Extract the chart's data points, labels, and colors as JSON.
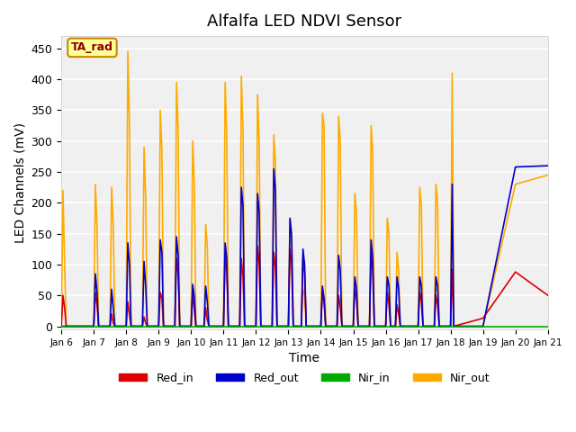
{
  "title": "Alfalfa LED NDVI Sensor",
  "xlabel": "Time",
  "ylabel": "LED Channels (mV)",
  "ylim": [
    -5,
    470
  ],
  "xlim": [
    0,
    15
  ],
  "background_color": "#f0f0f0",
  "grid_color": "#ffffff",
  "annotation_text": "TA_rad",
  "annotation_bg": "#ffff99",
  "annotation_border": "#cc8800",
  "legend_labels": [
    "Red_in",
    "Red_out",
    "Nir_in",
    "Nir_out"
  ],
  "legend_colors": [
    "#dd0000",
    "#0000cc",
    "#00aa00",
    "#ffaa00"
  ],
  "x_tick_labels": [
    "Jan 6",
    "Jan 7",
    "Jan 8",
    "Jan 9",
    "Jan 10",
    "Jan 11",
    "Jan 12",
    "Jan 13",
    "Jan 14",
    "Jan 15",
    "Jan 16",
    "Jan 17",
    "Jan 18",
    "Jan 19",
    "Jan 20",
    "Jan 21"
  ],
  "x_tick_positions": [
    0,
    1,
    2,
    3,
    4,
    5,
    6,
    7,
    8,
    9,
    10,
    11,
    12,
    13,
    14,
    15
  ],
  "red_in": [
    [
      0.0,
      0
    ],
    [
      0.05,
      50
    ],
    [
      0.1,
      30
    ],
    [
      0.15,
      0
    ],
    [
      1.0,
      0
    ],
    [
      1.05,
      55
    ],
    [
      1.1,
      35
    ],
    [
      1.15,
      0
    ],
    [
      1.5,
      0
    ],
    [
      1.55,
      20
    ],
    [
      1.6,
      5
    ],
    [
      1.65,
      0
    ],
    [
      2.0,
      0
    ],
    [
      2.05,
      40
    ],
    [
      2.1,
      18
    ],
    [
      2.15,
      0
    ],
    [
      2.5,
      0
    ],
    [
      2.55,
      15
    ],
    [
      2.6,
      5
    ],
    [
      2.65,
      0
    ],
    [
      3.0,
      0
    ],
    [
      3.05,
      55
    ],
    [
      3.1,
      45
    ],
    [
      3.15,
      0
    ],
    [
      3.5,
      0
    ],
    [
      3.55,
      110
    ],
    [
      3.6,
      85
    ],
    [
      3.65,
      0
    ],
    [
      4.0,
      0
    ],
    [
      4.05,
      55
    ],
    [
      4.1,
      25
    ],
    [
      4.15,
      0
    ],
    [
      4.4,
      0
    ],
    [
      4.45,
      30
    ],
    [
      4.5,
      10
    ],
    [
      4.55,
      0
    ],
    [
      5.0,
      0
    ],
    [
      5.05,
      115
    ],
    [
      5.1,
      90
    ],
    [
      5.15,
      0
    ],
    [
      5.5,
      0
    ],
    [
      5.55,
      110
    ],
    [
      5.6,
      80
    ],
    [
      5.65,
      0
    ],
    [
      6.0,
      0
    ],
    [
      6.05,
      130
    ],
    [
      6.1,
      100
    ],
    [
      6.15,
      0
    ],
    [
      6.5,
      0
    ],
    [
      6.55,
      120
    ],
    [
      6.6,
      95
    ],
    [
      6.65,
      0
    ],
    [
      7.0,
      0
    ],
    [
      7.05,
      125
    ],
    [
      7.1,
      100
    ],
    [
      7.15,
      0
    ],
    [
      7.4,
      0
    ],
    [
      7.45,
      110
    ],
    [
      7.5,
      85
    ],
    [
      7.55,
      0
    ],
    [
      8.0,
      0
    ],
    [
      8.05,
      55
    ],
    [
      8.1,
      40
    ],
    [
      8.15,
      0
    ],
    [
      8.5,
      0
    ],
    [
      8.55,
      50
    ],
    [
      8.6,
      30
    ],
    [
      8.65,
      0
    ],
    [
      9.0,
      0
    ],
    [
      9.05,
      60
    ],
    [
      9.1,
      45
    ],
    [
      9.15,
      0
    ],
    [
      9.5,
      0
    ],
    [
      9.55,
      115
    ],
    [
      9.6,
      90
    ],
    [
      9.65,
      0
    ],
    [
      10.0,
      0
    ],
    [
      10.05,
      55
    ],
    [
      10.1,
      35
    ],
    [
      10.15,
      0
    ],
    [
      10.3,
      0
    ],
    [
      10.35,
      35
    ],
    [
      10.4,
      20
    ],
    [
      10.45,
      0
    ],
    [
      11.0,
      0
    ],
    [
      11.05,
      55
    ],
    [
      11.1,
      40
    ],
    [
      11.15,
      0
    ],
    [
      11.5,
      0
    ],
    [
      11.55,
      50
    ],
    [
      11.6,
      35
    ],
    [
      11.65,
      0
    ],
    [
      12.0,
      0
    ],
    [
      12.05,
      92
    ],
    [
      12.1,
      0
    ],
    [
      13.0,
      13
    ],
    [
      14.0,
      88
    ],
    [
      15.0,
      50
    ]
  ],
  "red_out": [
    [
      0.0,
      0
    ],
    [
      0.05,
      0
    ],
    [
      0.1,
      0
    ],
    [
      0.15,
      0
    ],
    [
      1.0,
      0
    ],
    [
      1.05,
      85
    ],
    [
      1.1,
      55
    ],
    [
      1.15,
      0
    ],
    [
      1.5,
      0
    ],
    [
      1.55,
      60
    ],
    [
      1.6,
      30
    ],
    [
      1.65,
      0
    ],
    [
      2.0,
      0
    ],
    [
      2.05,
      135
    ],
    [
      2.1,
      100
    ],
    [
      2.15,
      0
    ],
    [
      2.5,
      0
    ],
    [
      2.55,
      105
    ],
    [
      2.6,
      65
    ],
    [
      2.65,
      0
    ],
    [
      3.0,
      0
    ],
    [
      3.05,
      140
    ],
    [
      3.1,
      120
    ],
    [
      3.15,
      0
    ],
    [
      3.5,
      0
    ],
    [
      3.55,
      145
    ],
    [
      3.6,
      115
    ],
    [
      3.65,
      0
    ],
    [
      4.0,
      0
    ],
    [
      4.05,
      68
    ],
    [
      4.1,
      48
    ],
    [
      4.15,
      0
    ],
    [
      4.4,
      0
    ],
    [
      4.45,
      65
    ],
    [
      4.5,
      40
    ],
    [
      4.55,
      0
    ],
    [
      5.0,
      0
    ],
    [
      5.05,
      135
    ],
    [
      5.1,
      110
    ],
    [
      5.15,
      0
    ],
    [
      5.5,
      0
    ],
    [
      5.55,
      225
    ],
    [
      5.6,
      195
    ],
    [
      5.65,
      0
    ],
    [
      6.0,
      0
    ],
    [
      6.05,
      215
    ],
    [
      6.1,
      185
    ],
    [
      6.15,
      0
    ],
    [
      6.5,
      0
    ],
    [
      6.55,
      255
    ],
    [
      6.6,
      220
    ],
    [
      6.65,
      0
    ],
    [
      7.0,
      0
    ],
    [
      7.05,
      175
    ],
    [
      7.1,
      145
    ],
    [
      7.15,
      0
    ],
    [
      7.4,
      0
    ],
    [
      7.45,
      125
    ],
    [
      7.5,
      100
    ],
    [
      7.55,
      0
    ],
    [
      8.0,
      0
    ],
    [
      8.05,
      65
    ],
    [
      8.1,
      45
    ],
    [
      8.15,
      0
    ],
    [
      8.5,
      0
    ],
    [
      8.55,
      115
    ],
    [
      8.6,
      90
    ],
    [
      8.65,
      0
    ],
    [
      9.0,
      0
    ],
    [
      9.05,
      80
    ],
    [
      9.1,
      60
    ],
    [
      9.15,
      0
    ],
    [
      9.5,
      0
    ],
    [
      9.55,
      140
    ],
    [
      9.6,
      110
    ],
    [
      9.65,
      0
    ],
    [
      10.0,
      0
    ],
    [
      10.05,
      80
    ],
    [
      10.1,
      65
    ],
    [
      10.15,
      0
    ],
    [
      10.3,
      0
    ],
    [
      10.35,
      80
    ],
    [
      10.4,
      60
    ],
    [
      10.45,
      0
    ],
    [
      11.0,
      0
    ],
    [
      11.05,
      80
    ],
    [
      11.1,
      65
    ],
    [
      11.15,
      0
    ],
    [
      11.5,
      0
    ],
    [
      11.55,
      80
    ],
    [
      11.6,
      65
    ],
    [
      11.65,
      0
    ],
    [
      12.0,
      0
    ],
    [
      12.05,
      230
    ],
    [
      12.1,
      0
    ],
    [
      13.0,
      0
    ],
    [
      14.0,
      258
    ],
    [
      15.0,
      260
    ]
  ],
  "nir_in": [
    [
      0.0,
      0
    ],
    [
      0.1,
      0
    ],
    [
      1.0,
      0
    ],
    [
      2.0,
      0
    ],
    [
      3.0,
      0
    ],
    [
      4.0,
      0
    ],
    [
      5.0,
      0
    ],
    [
      6.0,
      0
    ],
    [
      7.0,
      0
    ],
    [
      8.0,
      0
    ],
    [
      9.0,
      0
    ],
    [
      10.0,
      0
    ],
    [
      11.0,
      0
    ],
    [
      12.0,
      0
    ],
    [
      13.0,
      0
    ],
    [
      14.0,
      0
    ],
    [
      15.0,
      0
    ]
  ],
  "nir_out": [
    [
      0.0,
      0
    ],
    [
      0.05,
      220
    ],
    [
      0.1,
      105
    ],
    [
      0.15,
      0
    ],
    [
      1.0,
      0
    ],
    [
      1.05,
      230
    ],
    [
      1.1,
      160
    ],
    [
      1.15,
      0
    ],
    [
      1.5,
      0
    ],
    [
      1.55,
      225
    ],
    [
      1.6,
      165
    ],
    [
      1.65,
      0
    ],
    [
      2.0,
      0
    ],
    [
      2.05,
      445
    ],
    [
      2.1,
      330
    ],
    [
      2.15,
      0
    ],
    [
      2.5,
      0
    ],
    [
      2.55,
      290
    ],
    [
      2.6,
      210
    ],
    [
      2.65,
      0
    ],
    [
      3.0,
      0
    ],
    [
      3.05,
      350
    ],
    [
      3.1,
      285
    ],
    [
      3.15,
      0
    ],
    [
      3.5,
      0
    ],
    [
      3.55,
      395
    ],
    [
      3.6,
      320
    ],
    [
      3.65,
      0
    ],
    [
      4.0,
      0
    ],
    [
      4.05,
      300
    ],
    [
      4.1,
      230
    ],
    [
      4.15,
      0
    ],
    [
      4.4,
      0
    ],
    [
      4.45,
      165
    ],
    [
      4.5,
      130
    ],
    [
      4.55,
      0
    ],
    [
      5.0,
      0
    ],
    [
      5.05,
      395
    ],
    [
      5.1,
      310
    ],
    [
      5.15,
      0
    ],
    [
      5.5,
      0
    ],
    [
      5.55,
      405
    ],
    [
      5.6,
      320
    ],
    [
      5.65,
      0
    ],
    [
      6.0,
      0
    ],
    [
      6.05,
      375
    ],
    [
      6.1,
      295
    ],
    [
      6.15,
      0
    ],
    [
      6.5,
      0
    ],
    [
      6.55,
      310
    ],
    [
      6.6,
      265
    ],
    [
      6.65,
      0
    ],
    [
      7.0,
      0
    ],
    [
      7.05,
      175
    ],
    [
      7.1,
      155
    ],
    [
      7.15,
      0
    ],
    [
      7.4,
      0
    ],
    [
      7.45,
      60
    ],
    [
      7.5,
      50
    ],
    [
      7.55,
      0
    ],
    [
      8.0,
      0
    ],
    [
      8.05,
      345
    ],
    [
      8.1,
      325
    ],
    [
      8.15,
      0
    ],
    [
      8.5,
      0
    ],
    [
      8.55,
      340
    ],
    [
      8.6,
      300
    ],
    [
      8.65,
      0
    ],
    [
      9.0,
      0
    ],
    [
      9.05,
      215
    ],
    [
      9.1,
      185
    ],
    [
      9.15,
      0
    ],
    [
      9.5,
      0
    ],
    [
      9.55,
      325
    ],
    [
      9.6,
      280
    ],
    [
      9.65,
      0
    ],
    [
      10.0,
      0
    ],
    [
      10.05,
      175
    ],
    [
      10.1,
      150
    ],
    [
      10.15,
      0
    ],
    [
      10.3,
      0
    ],
    [
      10.35,
      120
    ],
    [
      10.4,
      90
    ],
    [
      10.45,
      0
    ],
    [
      11.0,
      0
    ],
    [
      11.05,
      225
    ],
    [
      11.1,
      195
    ],
    [
      11.15,
      0
    ],
    [
      11.5,
      0
    ],
    [
      11.55,
      230
    ],
    [
      11.6,
      200
    ],
    [
      11.65,
      0
    ],
    [
      12.0,
      0
    ],
    [
      12.05,
      410
    ],
    [
      12.1,
      0
    ],
    [
      13.0,
      0
    ],
    [
      14.0,
      230
    ],
    [
      15.0,
      245
    ]
  ]
}
